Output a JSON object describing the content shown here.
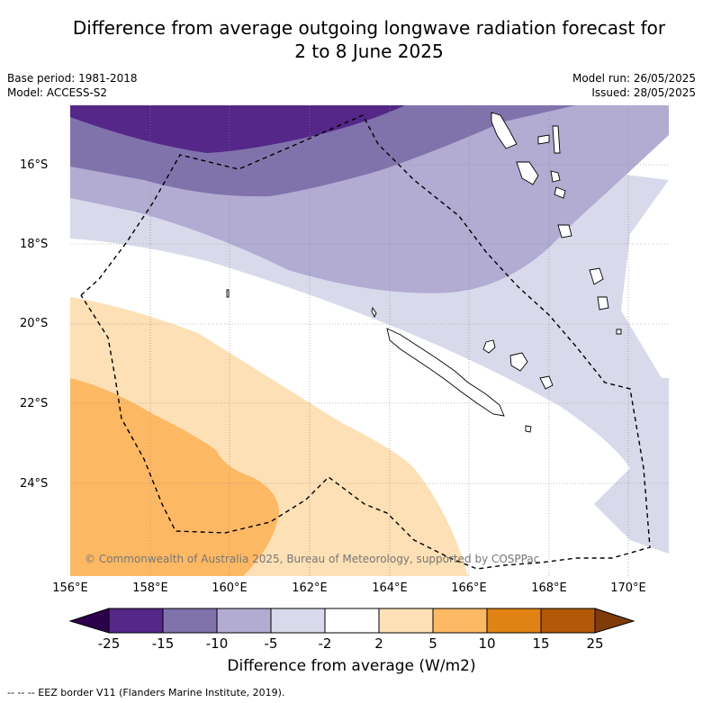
{
  "title": {
    "line1": "Difference from average outgoing longwave radiation forecast for",
    "line2": "2 to 8 June 2025"
  },
  "meta": {
    "base_period": "Base period: 1981-2018",
    "model": "Model: ACCESS-S2",
    "model_run": "Model run: 26/05/2025",
    "issued": "Issued: 28/05/2025"
  },
  "map": {
    "lat_labels": [
      "16°S",
      "18°S",
      "20°S",
      "22°S",
      "24°S"
    ],
    "lon_labels": [
      "156°E",
      "158°E",
      "160°E",
      "162°E",
      "164°E",
      "166°E",
      "168°E",
      "170°E"
    ],
    "copyright": "© Commonwealth of Australia 2025, Bureau of Meteorology, supported by COSPPac",
    "colors": {
      "lt_-15": "#542788",
      "-15_-10": "#8073ac",
      "-10_-5": "#b2abd2",
      "-5_-2": "#d8daeb",
      "-2_2": "#ffffff",
      "2_5": "#fee0b6",
      "5_10": "#fdb863",
      "10_15": "#e08214",
      "15_25": "#b35806"
    }
  },
  "colorbar": {
    "ticks": [
      "-25",
      "-15",
      "-10",
      "-5",
      "-2",
      "2",
      "5",
      "10",
      "15",
      "25"
    ],
    "colors": [
      "#542788",
      "#8073ac",
      "#b2abd2",
      "#d8daeb",
      "#ffffff",
      "#fee0b6",
      "#fdb863",
      "#e08214",
      "#b35806"
    ],
    "under_color": "#2d004b",
    "over_color": "#7f3b08",
    "title": "Difference from average (W/m2)"
  },
  "footer": "--  --  -- EEZ border V11 (Flanders Marine Institute, 2019)."
}
